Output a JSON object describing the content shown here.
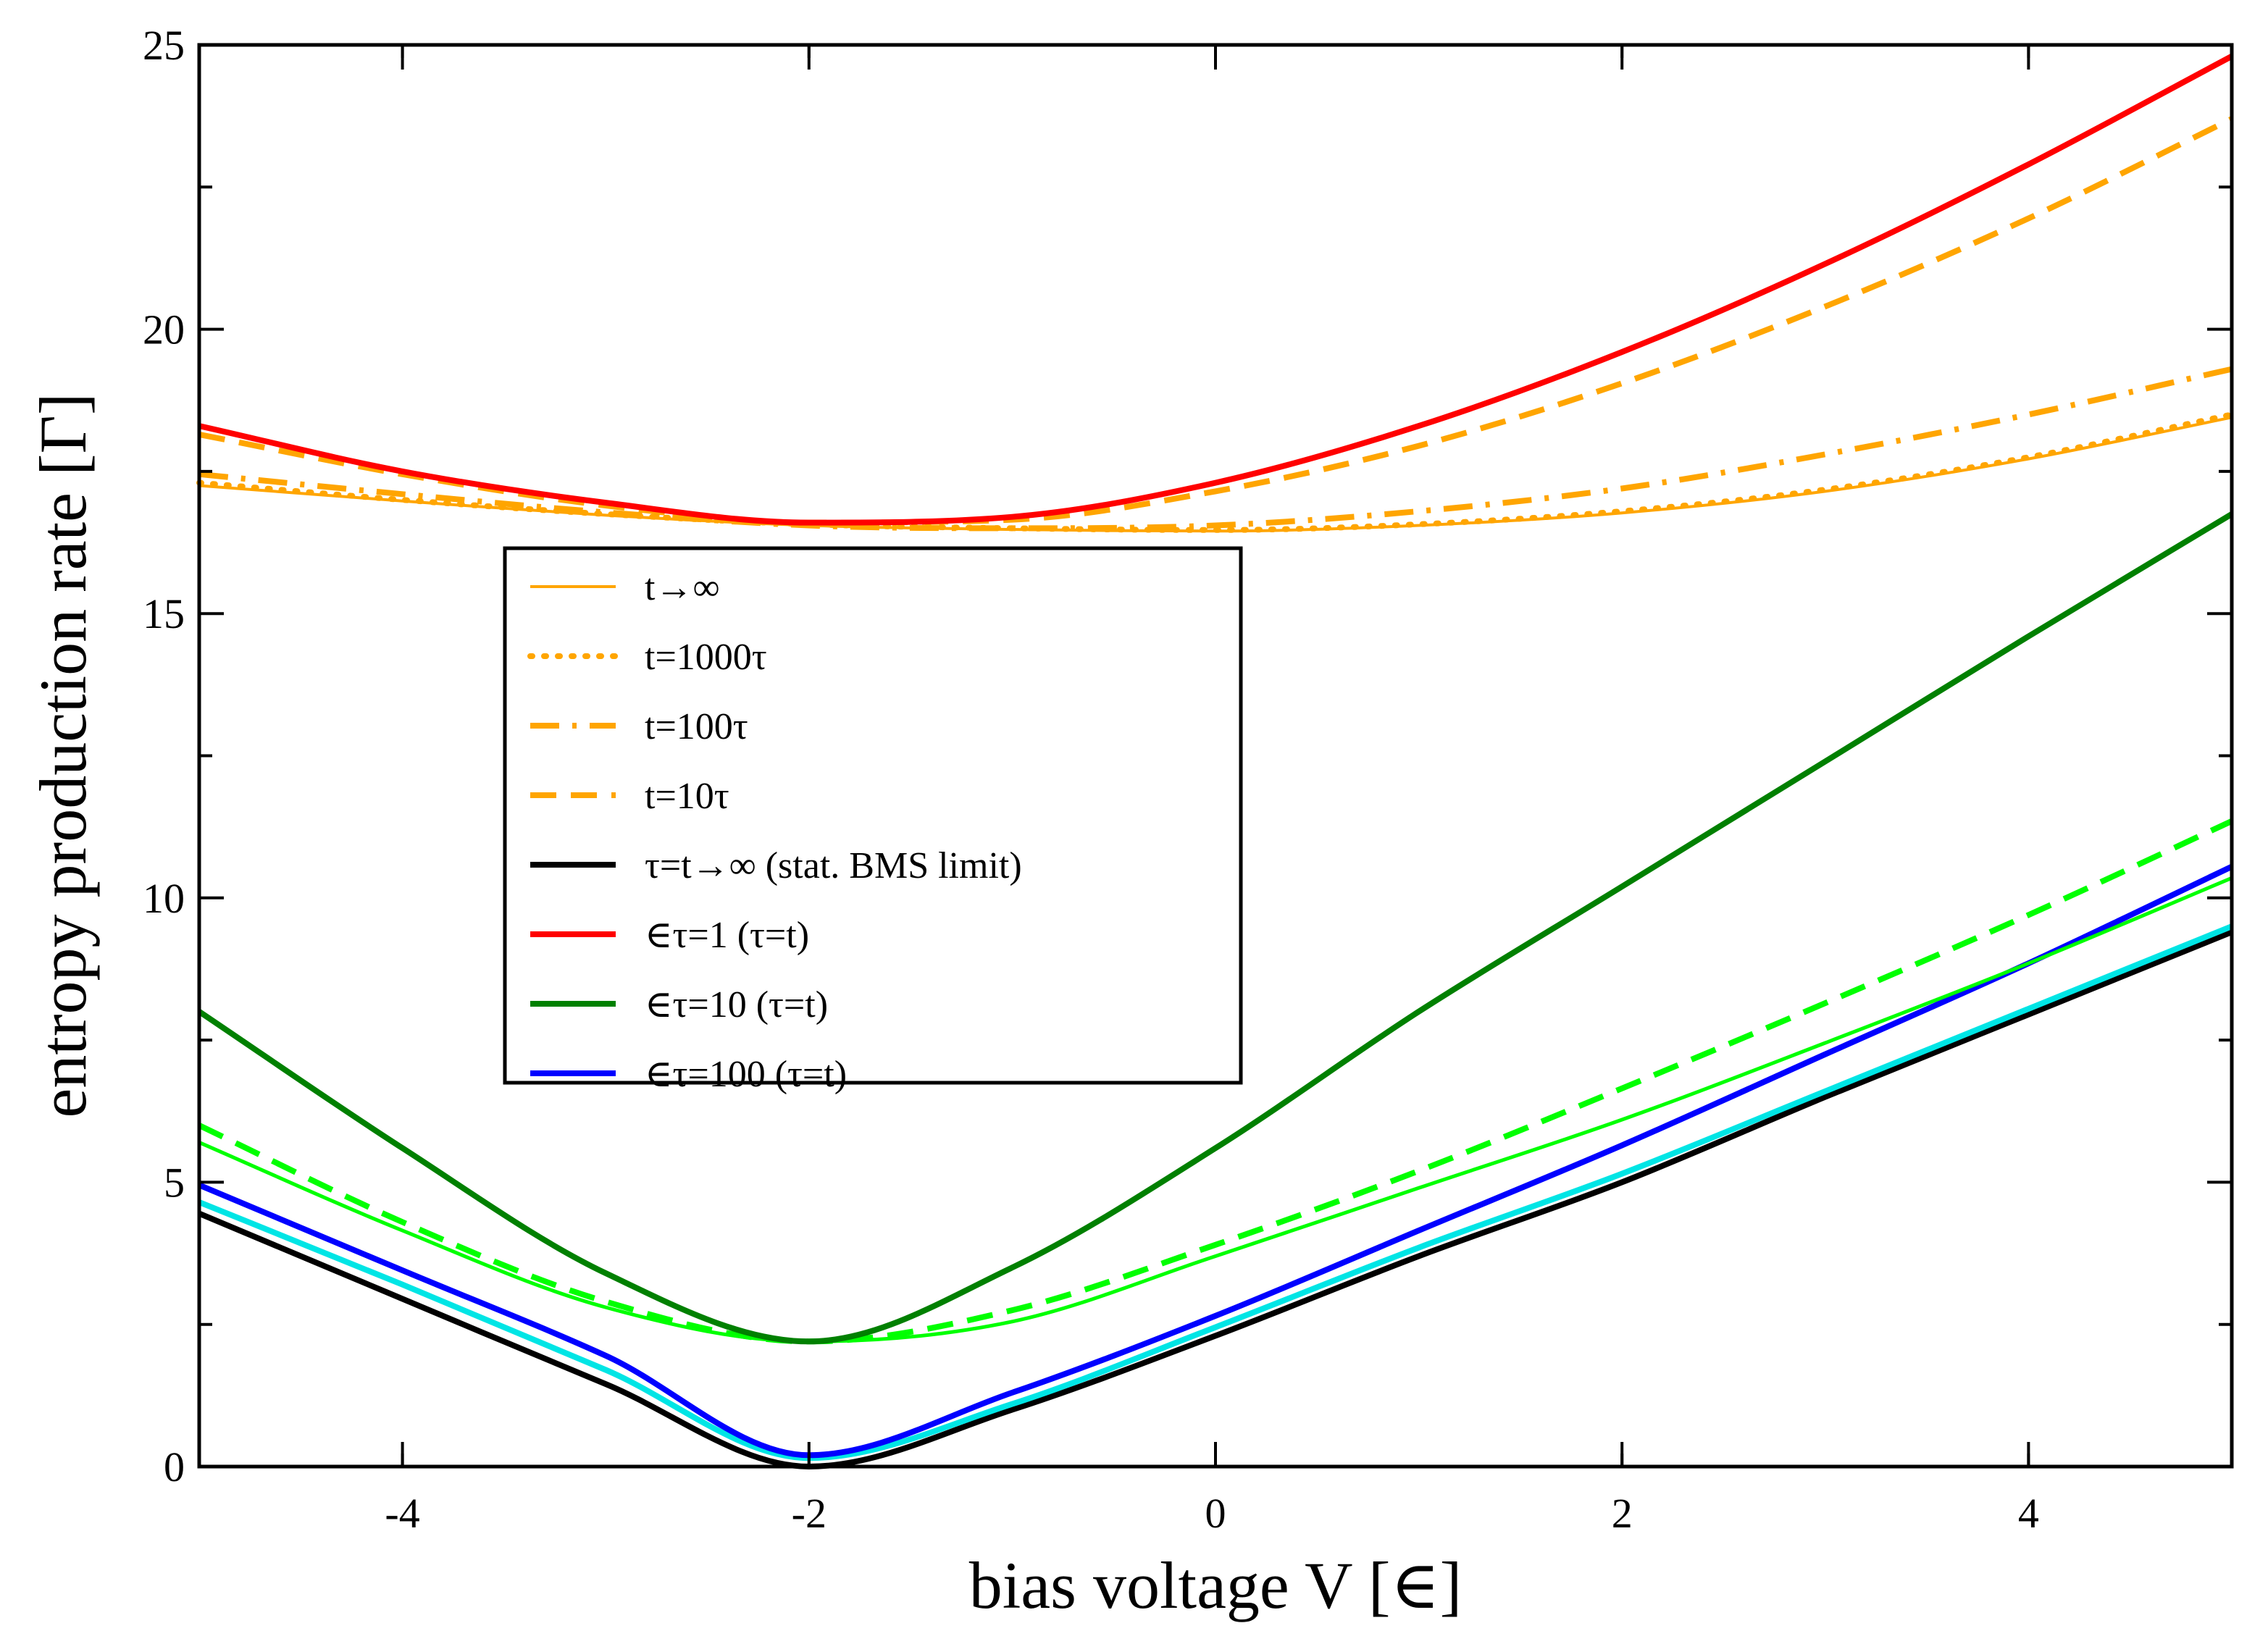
{
  "chart_data": {
    "type": "line",
    "title": "",
    "xlabel": "bias voltage V [∈]",
    "ylabel": "entropy production rate [Γ]",
    "xlim": [
      -5,
      5
    ],
    "ylim": [
      0,
      25
    ],
    "xticks": [
      -4,
      -2,
      0,
      2,
      4
    ],
    "xtick_labels": [
      "-4",
      "-2",
      "0",
      "2",
      "4"
    ],
    "yticks": [
      0,
      5,
      10,
      15,
      20,
      25
    ],
    "ytick_labels": [
      "0",
      "5",
      "10",
      "15",
      "20",
      "25"
    ],
    "grid": false,
    "legend_position": "center-left",
    "x": [
      -5,
      -4,
      -3,
      -2,
      -1,
      0,
      1,
      2,
      3,
      4,
      5
    ],
    "series": [
      {
        "name": "t→∞",
        "color": "#ffa500",
        "dash": "solid",
        "width": "thin",
        "in_legend": true,
        "values": [
          17.25,
          16.98,
          16.73,
          16.55,
          16.48,
          16.45,
          16.55,
          16.77,
          17.15,
          17.72,
          18.45
        ]
      },
      {
        "name": "t=1000τ",
        "color": "#ffa500",
        "dash": "dotted",
        "width": "thick",
        "in_legend": true,
        "values": [
          17.3,
          17.0,
          16.75,
          16.57,
          16.5,
          16.47,
          16.57,
          16.8,
          17.18,
          17.75,
          18.5
        ]
      },
      {
        "name": "t=100τ",
        "color": "#ffa500",
        "dash": "dashdot",
        "width": "thick",
        "in_legend": true,
        "values": [
          17.45,
          17.1,
          16.78,
          16.55,
          16.5,
          16.55,
          16.8,
          17.2,
          17.8,
          18.5,
          19.3
        ]
      },
      {
        "name": "t=10τ",
        "color": "#ffa500",
        "dash": "dashed",
        "width": "thick",
        "in_legend": true,
        "values": [
          18.15,
          17.45,
          16.9,
          16.6,
          16.65,
          17.15,
          17.95,
          19.05,
          20.4,
          21.95,
          23.7
        ]
      },
      {
        "name": "τ=t→∞ (stat. BMS limit)",
        "color": "#000000",
        "dash": "solid",
        "width": "thick",
        "in_legend": true,
        "values": [
          4.45,
          2.95,
          1.45,
          0.0,
          1.0,
          2.3,
          3.7,
          5.0,
          6.5,
          7.95,
          9.4
        ]
      },
      {
        "name": "∈τ=1 (τ=t)",
        "color": "#ff0000",
        "dash": "solid",
        "width": "thick",
        "in_legend": true,
        "values": [
          18.3,
          17.5,
          16.95,
          16.6,
          16.7,
          17.3,
          18.3,
          19.6,
          21.15,
          22.9,
          24.8
        ]
      },
      {
        "name": "∈τ=10 (τ=t)",
        "color": "#008000",
        "dash": "solid",
        "width": "thick",
        "in_legend": true,
        "values": [
          8.0,
          5.6,
          3.4,
          2.2,
          3.5,
          5.6,
          8.0,
          10.2,
          12.4,
          14.6,
          16.75
        ]
      },
      {
        "name": "∈τ=100 (τ=t)",
        "color": "#0000ff",
        "dash": "solid",
        "width": "thick",
        "in_legend": true,
        "values": [
          4.95,
          3.45,
          1.95,
          0.2,
          1.3,
          2.65,
          4.15,
          5.65,
          7.25,
          8.85,
          10.55
        ]
      },
      {
        "name": "",
        "color": "#00ff00",
        "dash": "solid",
        "width": "medium",
        "in_legend": false,
        "values": [
          5.7,
          4.15,
          2.8,
          2.2,
          2.55,
          3.7,
          4.9,
          6.1,
          7.45,
          8.85,
          10.35
        ]
      },
      {
        "name": "",
        "color": "#00ff00",
        "dash": "dashed",
        "width": "thick",
        "in_legend": false,
        "values": [
          6.0,
          4.3,
          2.9,
          2.2,
          2.75,
          3.9,
          5.2,
          6.65,
          8.15,
          9.7,
          11.35
        ]
      },
      {
        "name": "",
        "color": "#00e5e5",
        "dash": "solid",
        "width": "thick",
        "in_legend": false,
        "values": [
          4.65,
          3.2,
          1.7,
          0.15,
          1.1,
          2.45,
          3.85,
          5.15,
          6.6,
          8.05,
          9.5
        ]
      }
    ]
  }
}
